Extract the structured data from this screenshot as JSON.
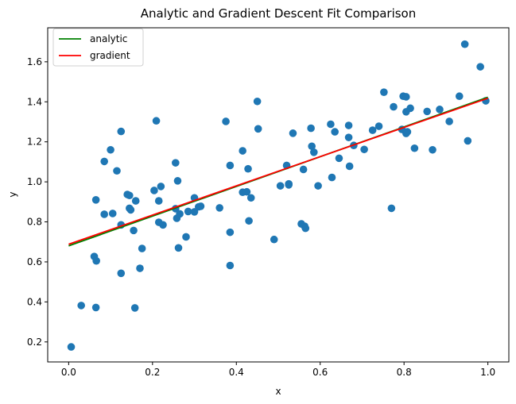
{
  "chart_data": {
    "type": "scatter",
    "title": "Analytic and Gradient Descent Fit Comparison",
    "xlabel": "x",
    "ylabel": "y",
    "xlim": [
      -0.05,
      1.05
    ],
    "ylim": [
      0.1,
      1.77
    ],
    "xticks": [
      {
        "value": 0.0,
        "label": "0.0"
      },
      {
        "value": 0.2,
        "label": "0.2"
      },
      {
        "value": 0.4,
        "label": "0.4"
      },
      {
        "value": 0.6,
        "label": "0.6"
      },
      {
        "value": 0.8,
        "label": "0.8"
      },
      {
        "value": 1.0,
        "label": "1.0"
      }
    ],
    "yticks": [
      {
        "value": 0.2,
        "label": "0.2"
      },
      {
        "value": 0.4,
        "label": "0.4"
      },
      {
        "value": 0.6,
        "label": "0.6"
      },
      {
        "value": 0.8,
        "label": "0.8"
      },
      {
        "value": 1.0,
        "label": "1.0"
      },
      {
        "value": 1.2,
        "label": "1.2"
      },
      {
        "value": 1.4,
        "label": "1.4"
      },
      {
        "value": 1.6,
        "label": "1.6"
      }
    ],
    "grid": false,
    "legend_position": "top-left",
    "scatter": {
      "color": "#1f77b4",
      "points": [
        [
          0.006,
          0.175
        ],
        [
          0.03,
          0.382
        ],
        [
          0.065,
          0.372
        ],
        [
          0.061,
          0.627
        ],
        [
          0.066,
          0.605
        ],
        [
          0.065,
          0.91
        ],
        [
          0.085,
          0.838
        ],
        [
          0.085,
          1.102
        ],
        [
          0.1,
          1.16
        ],
        [
          0.105,
          0.842
        ],
        [
          0.115,
          1.055
        ],
        [
          0.125,
          1.252
        ],
        [
          0.125,
          0.785
        ],
        [
          0.125,
          0.543
        ],
        [
          0.14,
          0.937
        ],
        [
          0.145,
          0.932
        ],
        [
          0.145,
          0.868
        ],
        [
          0.148,
          0.86
        ],
        [
          0.155,
          0.757
        ],
        [
          0.158,
          0.37
        ],
        [
          0.16,
          0.905
        ],
        [
          0.17,
          0.568
        ],
        [
          0.175,
          0.667
        ],
        [
          0.204,
          0.957
        ],
        [
          0.209,
          1.305
        ],
        [
          0.215,
          0.798
        ],
        [
          0.215,
          0.905
        ],
        [
          0.22,
          0.977
        ],
        [
          0.225,
          0.785
        ],
        [
          0.255,
          0.866
        ],
        [
          0.255,
          1.095
        ],
        [
          0.258,
          0.818
        ],
        [
          0.26,
          1.005
        ],
        [
          0.262,
          0.67
        ],
        [
          0.265,
          0.84
        ],
        [
          0.28,
          0.725
        ],
        [
          0.285,
          0.852
        ],
        [
          0.3,
          0.92
        ],
        [
          0.3,
          0.85
        ],
        [
          0.31,
          0.875
        ],
        [
          0.315,
          0.878
        ],
        [
          0.36,
          0.87
        ],
        [
          0.375,
          1.302
        ],
        [
          0.385,
          1.082
        ],
        [
          0.385,
          0.748
        ],
        [
          0.385,
          0.582
        ],
        [
          0.415,
          0.948
        ],
        [
          0.415,
          1.155
        ],
        [
          0.425,
          0.95
        ],
        [
          0.428,
          1.065
        ],
        [
          0.43,
          0.805
        ],
        [
          0.435,
          0.92
        ],
        [
          0.45,
          1.402
        ],
        [
          0.452,
          1.265
        ],
        [
          0.49,
          0.712
        ],
        [
          0.505,
          0.98
        ],
        [
          0.52,
          1.082
        ],
        [
          0.525,
          0.99
        ],
        [
          0.525,
          0.985
        ],
        [
          0.535,
          1.243
        ],
        [
          0.555,
          0.79
        ],
        [
          0.56,
          1.062
        ],
        [
          0.563,
          0.778
        ],
        [
          0.565,
          0.768
        ],
        [
          0.578,
          1.268
        ],
        [
          0.58,
          1.178
        ],
        [
          0.585,
          1.148
        ],
        [
          0.595,
          0.98
        ],
        [
          0.625,
          1.288
        ],
        [
          0.628,
          1.022
        ],
        [
          0.635,
          1.25
        ],
        [
          0.645,
          1.118
        ],
        [
          0.668,
          1.282
        ],
        [
          0.668,
          1.222
        ],
        [
          0.67,
          1.078
        ],
        [
          0.68,
          1.182
        ],
        [
          0.705,
          1.162
        ],
        [
          0.725,
          1.258
        ],
        [
          0.74,
          1.278
        ],
        [
          0.752,
          1.448
        ],
        [
          0.77,
          0.868
        ],
        [
          0.775,
          1.375
        ],
        [
          0.795,
          1.262
        ],
        [
          0.798,
          1.428
        ],
        [
          0.805,
          1.425
        ],
        [
          0.805,
          1.35
        ],
        [
          0.805,
          1.242
        ],
        [
          0.808,
          1.25
        ],
        [
          0.815,
          1.368
        ],
        [
          0.825,
          1.168
        ],
        [
          0.855,
          1.352
        ],
        [
          0.868,
          1.16
        ],
        [
          0.885,
          1.362
        ],
        [
          0.908,
          1.302
        ],
        [
          0.932,
          1.428
        ],
        [
          0.945,
          1.688
        ],
        [
          0.952,
          1.205
        ],
        [
          0.982,
          1.575
        ],
        [
          0.995,
          1.405
        ]
      ]
    },
    "series": [
      {
        "name": "analytic",
        "color": "#008000",
        "x": [
          0.0,
          1.0
        ],
        "y": [
          0.68,
          1.423
        ]
      },
      {
        "name": "gradient",
        "color": "#ff0000",
        "x": [
          0.0,
          1.0
        ],
        "y": [
          0.688,
          1.418
        ]
      }
    ]
  }
}
